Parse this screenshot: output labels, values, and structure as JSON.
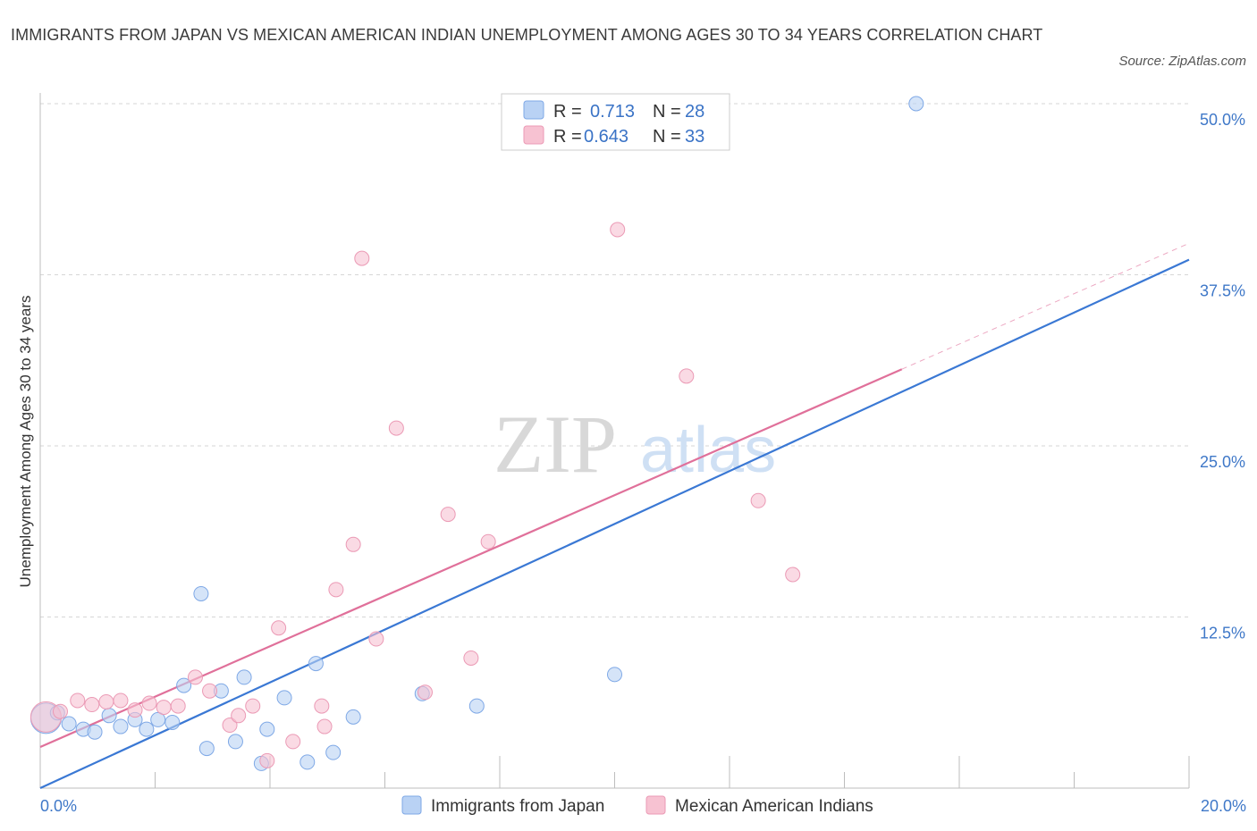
{
  "title": "IMMIGRANTS FROM JAPAN VS MEXICAN AMERICAN INDIAN UNEMPLOYMENT AMONG AGES 30 TO 34 YEARS CORRELATION CHART",
  "source": "Source: ZipAtlas.com",
  "watermark": {
    "zip": "ZIP",
    "atlas": "atlas"
  },
  "colors": {
    "blue": "#3a78d4",
    "pink": "#e0709a",
    "blue_fill": "#b9d2f4",
    "pink_fill": "#f7c2d2",
    "grid": "#d6d6d6",
    "tick_text": "#3f78c8"
  },
  "chart_data": {
    "type": "scatter",
    "title": "IMMIGRANTS FROM JAPAN VS MEXICAN AMERICAN INDIAN UNEMPLOYMENT AMONG AGES 30 TO 34 YEARS CORRELATION CHART",
    "xlabel": "",
    "ylabel": "Unemployment Among Ages 30 to 34 years",
    "xlim": [
      0,
      20
    ],
    "ylim": [
      0,
      50
    ],
    "x_tick_labels": [
      "0.0%",
      "20.0%"
    ],
    "y_ticks": [
      {
        "value": 12.5,
        "label": "12.5%"
      },
      {
        "value": 25,
        "label": "25.0%"
      },
      {
        "value": 37.5,
        "label": "37.5%"
      },
      {
        "value": 50,
        "label": "50.0%"
      }
    ],
    "legend": {
      "rows": [
        {
          "r_label": "R =",
          "r_value": "0.713",
          "n_label": "N =",
          "n_value": "28"
        },
        {
          "r_label": "R =",
          "r_value": "0.643",
          "n_label": "N =",
          "n_value": "33"
        }
      ]
    },
    "series": [
      {
        "name": "Immigrants from Japan",
        "color": "#3a78d4",
        "trend": {
          "x0": 0,
          "y0": 0.0,
          "x1": 20,
          "y1": 38.6
        },
        "points": [
          {
            "x": 0.1,
            "y": 5.1,
            "big": true
          },
          {
            "x": 0.3,
            "y": 5.5
          },
          {
            "x": 0.5,
            "y": 4.7
          },
          {
            "x": 0.75,
            "y": 4.3
          },
          {
            "x": 0.95,
            "y": 4.1
          },
          {
            "x": 1.2,
            "y": 5.3
          },
          {
            "x": 1.4,
            "y": 4.5
          },
          {
            "x": 1.65,
            "y": 5.0
          },
          {
            "x": 1.85,
            "y": 4.3
          },
          {
            "x": 2.05,
            "y": 5.0
          },
          {
            "x": 2.3,
            "y": 4.8
          },
          {
            "x": 2.5,
            "y": 7.5
          },
          {
            "x": 2.8,
            "y": 14.2
          },
          {
            "x": 2.9,
            "y": 2.9
          },
          {
            "x": 3.15,
            "y": 7.1
          },
          {
            "x": 3.4,
            "y": 3.4
          },
          {
            "x": 3.55,
            "y": 8.1
          },
          {
            "x": 3.85,
            "y": 1.8
          },
          {
            "x": 3.95,
            "y": 4.3
          },
          {
            "x": 4.25,
            "y": 6.6
          },
          {
            "x": 4.65,
            "y": 1.9
          },
          {
            "x": 4.8,
            "y": 9.1
          },
          {
            "x": 5.1,
            "y": 2.6
          },
          {
            "x": 5.45,
            "y": 5.2
          },
          {
            "x": 6.65,
            "y": 6.9
          },
          {
            "x": 7.6,
            "y": 6.0
          },
          {
            "x": 10.0,
            "y": 8.3
          },
          {
            "x": 15.25,
            "y": 50.0
          }
        ]
      },
      {
        "name": "Mexican American Indians",
        "color": "#e0709a",
        "trend": {
          "x0": 0,
          "y0": 3.0,
          "x1": 15.0,
          "y1": 30.6
        },
        "trend_extension": {
          "x0": 15.0,
          "y0": 30.6,
          "x1": 20,
          "y1": 39.8
        },
        "points": [
          {
            "x": 0.1,
            "y": 5.2,
            "big": true
          },
          {
            "x": 0.35,
            "y": 5.6
          },
          {
            "x": 0.65,
            "y": 6.4
          },
          {
            "x": 0.9,
            "y": 6.1
          },
          {
            "x": 1.15,
            "y": 6.3
          },
          {
            "x": 1.4,
            "y": 6.4
          },
          {
            "x": 1.65,
            "y": 5.7
          },
          {
            "x": 1.9,
            "y": 6.2
          },
          {
            "x": 2.15,
            "y": 5.9
          },
          {
            "x": 2.4,
            "y": 6.0
          },
          {
            "x": 2.7,
            "y": 8.1
          },
          {
            "x": 2.95,
            "y": 7.1
          },
          {
            "x": 3.3,
            "y": 4.6
          },
          {
            "x": 3.45,
            "y": 5.3
          },
          {
            "x": 3.7,
            "y": 6.0
          },
          {
            "x": 3.95,
            "y": 2.0
          },
          {
            "x": 4.15,
            "y": 11.7
          },
          {
            "x": 4.4,
            "y": 3.4
          },
          {
            "x": 4.9,
            "y": 6.0
          },
          {
            "x": 4.95,
            "y": 4.5
          },
          {
            "x": 5.15,
            "y": 14.5
          },
          {
            "x": 5.6,
            "y": 38.7
          },
          {
            "x": 5.45,
            "y": 17.8
          },
          {
            "x": 5.85,
            "y": 10.9
          },
          {
            "x": 6.2,
            "y": 26.3
          },
          {
            "x": 6.7,
            "y": 7.0
          },
          {
            "x": 7.1,
            "y": 20.0
          },
          {
            "x": 7.5,
            "y": 9.5
          },
          {
            "x": 7.8,
            "y": 18.0
          },
          {
            "x": 10.05,
            "y": 40.8
          },
          {
            "x": 11.25,
            "y": 30.1
          },
          {
            "x": 12.5,
            "y": 21.0
          },
          {
            "x": 13.1,
            "y": 15.6
          }
        ]
      }
    ]
  }
}
